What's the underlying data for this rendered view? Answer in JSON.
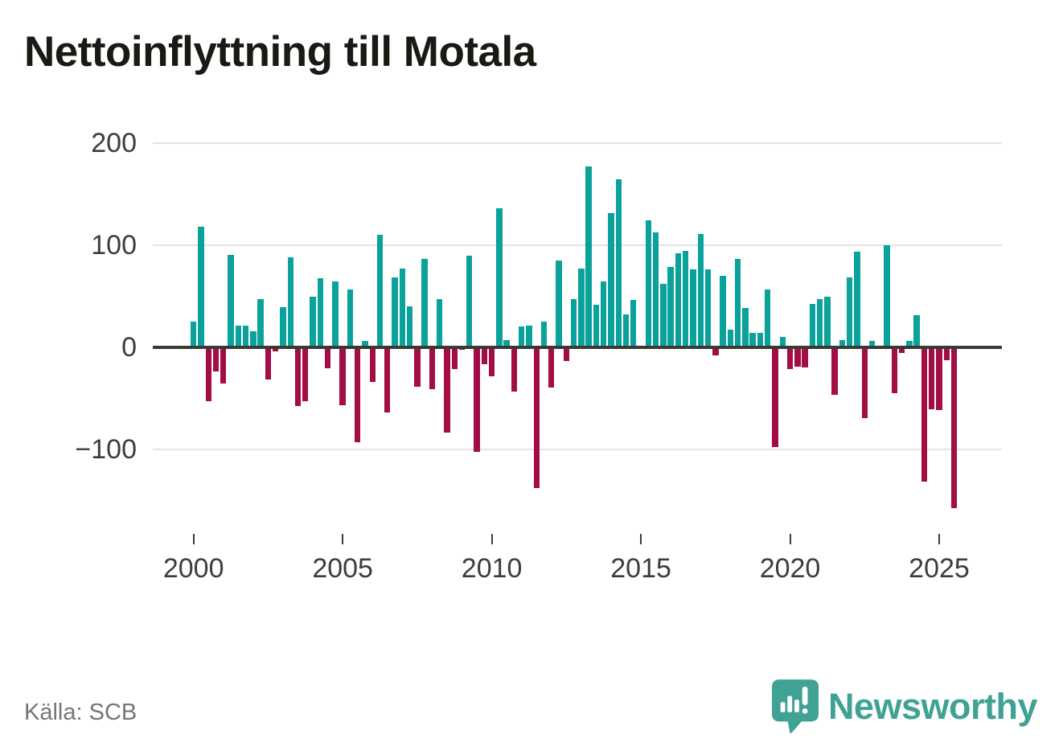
{
  "title": "Nettoinflyttning till Motala",
  "source": "Källa: SCB",
  "logo": {
    "text": "Newsworthy"
  },
  "colors": {
    "positive": "#0aa29b",
    "negative": "#a30d45",
    "zero_line": "#3a3a35",
    "gridline": "#e3e3e3",
    "axis_text": "#3d3d3d",
    "title_text": "#1a1a14",
    "source_text": "#757575",
    "logo_teal": "#3fa294"
  },
  "y_axis": {
    "tick_labels": [
      "200",
      "100",
      "0",
      "−100"
    ],
    "tick_values": [
      200,
      100,
      0,
      -100
    ]
  },
  "x_axis": {
    "tick_labels": [
      "2000",
      "2005",
      "2010",
      "2015",
      "2020",
      "2025"
    ]
  },
  "chart_data": {
    "type": "bar",
    "title": "Nettoinflyttning till Motala",
    "frequency": "quarterly",
    "start_period": "2000 Q1",
    "end_period": "2025 Q4",
    "ylim": [
      -170,
      210
    ],
    "grid": "horizontal",
    "legend": "none",
    "positive_color": "#0aa29b",
    "negative_color": "#a30d45",
    "years": [
      {
        "year": 2000,
        "quarters": [
          25,
          118,
          -53,
          -24
        ]
      },
      {
        "year": 2001,
        "quarters": [
          -36,
          90,
          21,
          21
        ]
      },
      {
        "year": 2002,
        "quarters": [
          15,
          47,
          -32,
          -4
        ]
      },
      {
        "year": 2003,
        "quarters": [
          39,
          88,
          -58,
          -53
        ]
      },
      {
        "year": 2004,
        "quarters": [
          49,
          67,
          -21,
          64
        ]
      },
      {
        "year": 2005,
        "quarters": [
          -57,
          56,
          -93,
          6
        ]
      },
      {
        "year": 2006,
        "quarters": [
          -34,
          110,
          -64,
          68
        ]
      },
      {
        "year": 2007,
        "quarters": [
          77,
          40,
          -39,
          86
        ]
      },
      {
        "year": 2008,
        "quarters": [
          -41,
          47,
          -84,
          -22
        ]
      },
      {
        "year": 2009,
        "quarters": [
          -3,
          89,
          -103,
          -17
        ]
      },
      {
        "year": 2010,
        "quarters": [
          -29,
          136,
          7,
          -44
        ]
      },
      {
        "year": 2011,
        "quarters": [
          20,
          21,
          -138,
          25
        ]
      },
      {
        "year": 2012,
        "quarters": [
          -40,
          85,
          -14,
          47
        ]
      },
      {
        "year": 2013,
        "quarters": [
          77,
          177,
          41,
          64
        ]
      },
      {
        "year": 2014,
        "quarters": [
          131,
          164,
          32,
          46
        ]
      },
      {
        "year": 2015,
        "quarters": [
          0,
          124,
          112,
          62
        ]
      },
      {
        "year": 2016,
        "quarters": [
          78,
          92,
          94,
          76
        ]
      },
      {
        "year": 2017,
        "quarters": [
          111,
          76,
          -8,
          70
        ]
      },
      {
        "year": 2018,
        "quarters": [
          17,
          86,
          38,
          14
        ]
      },
      {
        "year": 2019,
        "quarters": [
          14,
          56,
          -98,
          10
        ]
      },
      {
        "year": 2020,
        "quarters": [
          -22,
          -19,
          -20,
          42
        ]
      },
      {
        "year": 2021,
        "quarters": [
          47,
          49,
          -47,
          7
        ]
      },
      {
        "year": 2022,
        "quarters": [
          68,
          93,
          -70,
          6
        ]
      },
      {
        "year": 2023,
        "quarters": [
          0,
          100,
          -45,
          -6
        ]
      },
      {
        "year": 2024,
        "quarters": [
          6,
          31,
          -132,
          -61
        ]
      },
      {
        "year": 2025,
        "quarters": [
          -62,
          -13,
          -158,
          -2
        ]
      }
    ]
  }
}
